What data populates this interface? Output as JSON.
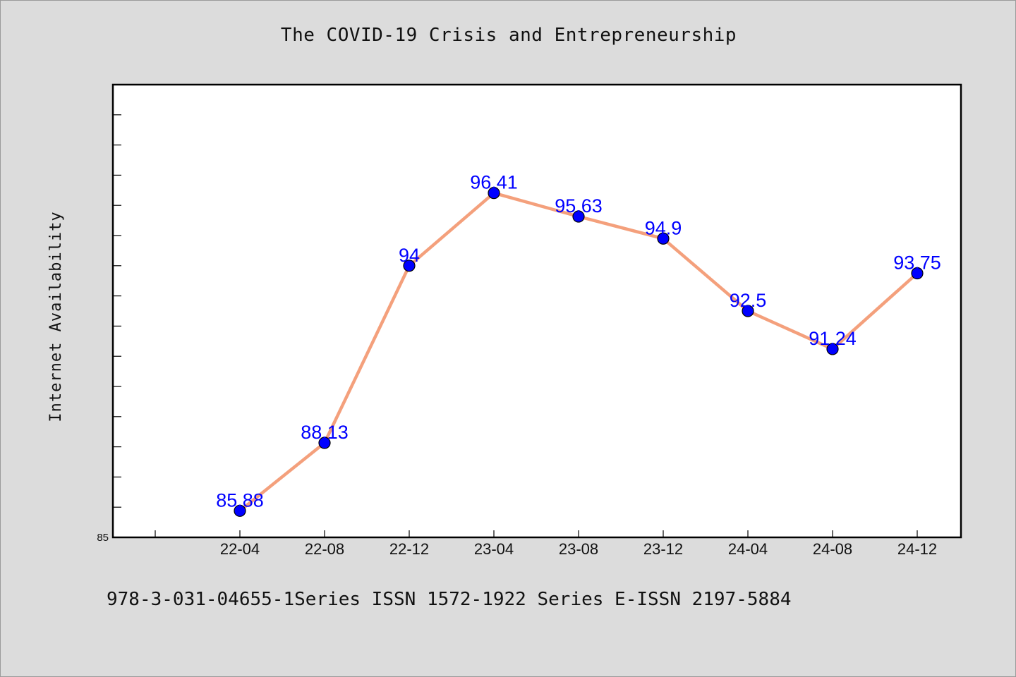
{
  "chart_data": {
    "type": "line",
    "title": "The COVID-19 Crisis and Entrepreneurship",
    "xlabel": "",
    "ylabel": "Internet Availability",
    "categories": [
      "22-04",
      "22-08",
      "22-12",
      "23-04",
      "23-08",
      "23-12",
      "24-04",
      "24-08",
      "24-12"
    ],
    "series": [
      {
        "values": [
          85.88,
          88.13,
          94,
          96.41,
          95.63,
          94.9,
          92.5,
          91.24,
          93.75
        ],
        "labels": [
          "85.88",
          "88.13",
          "94",
          "96.41",
          "95.63",
          "94.9",
          "92.5",
          "91.24",
          "93.75"
        ]
      }
    ],
    "ylim": [
      85,
      100
    ],
    "y_tick_labels": [
      "85"
    ],
    "grid": false,
    "colors": {
      "line": "#f4a07c",
      "marker": "#0000ff",
      "data_label": "#0000ff",
      "plot_background": "#ffffff",
      "page_background": "#dcdcdc"
    }
  },
  "footer": {
    "text": "978-3-031-04655-1Series ISSN 1572-1922 Series E-ISSN 2197-5884"
  }
}
